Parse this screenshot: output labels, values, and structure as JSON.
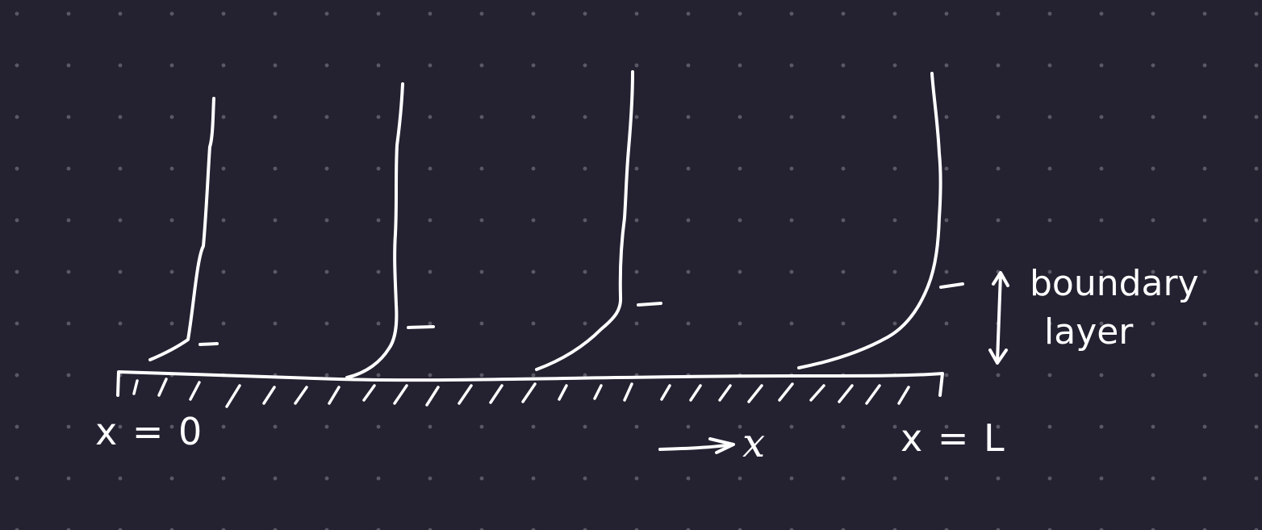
{
  "labels": {
    "start": "x = 0",
    "end": "x = L",
    "axis": "x",
    "boundary_line1": "boundary",
    "boundary_line2": "layer"
  },
  "colors": {
    "background": "#242131",
    "grid_dot": "#5b5866",
    "ink": "#ffffff"
  },
  "profiles": {
    "count": 4,
    "note_shape": "velocity profiles thickening downstream"
  }
}
